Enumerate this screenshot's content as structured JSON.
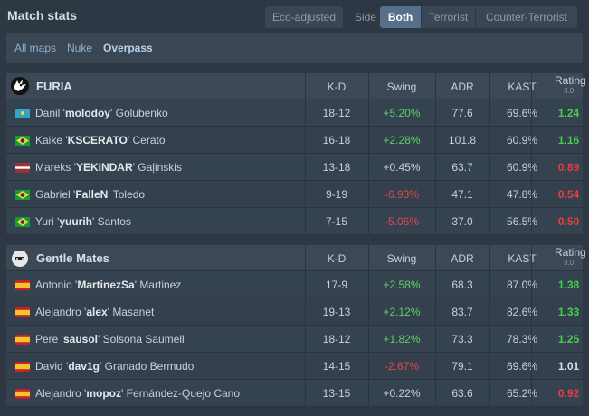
{
  "header": {
    "title": "Match stats",
    "eco_button": "Eco-adjusted",
    "side_label": "Side",
    "side_options": [
      "Both",
      "Terrorist",
      "Counter-Terrorist"
    ]
  },
  "maps": [
    "All maps",
    "Nuke",
    "Overpass"
  ],
  "columns": {
    "kd": "K-D",
    "swing": "Swing",
    "adr": "ADR",
    "kast": "KAST",
    "rating": "Rating",
    "rating_sub": "3.0"
  },
  "teams": [
    {
      "name": "FURIA",
      "players": [
        {
          "first": "Danil '",
          "nick": "molodoy",
          "last": "' Golubenko",
          "flag": "kz",
          "kd": "18-12",
          "swing": "+5.20%",
          "adr": "77.6",
          "kast": "69.6%",
          "rating": "1.24"
        },
        {
          "first": "Kaike '",
          "nick": "KSCERATO",
          "last": "' Cerato",
          "flag": "br",
          "kd": "16-18",
          "swing": "+2.28%",
          "adr": "101.8",
          "kast": "60.9%",
          "rating": "1.16"
        },
        {
          "first": "Mareks '",
          "nick": "YEKINDAR",
          "last": "' Gaļinskis",
          "flag": "lv",
          "kd": "13-18",
          "swing": "+0.45%",
          "adr": "63.7",
          "kast": "60.9%",
          "rating": "0.89"
        },
        {
          "first": "Gabriel '",
          "nick": "FalleN",
          "last": "' Toledo",
          "flag": "br",
          "kd": "9-19",
          "swing": "-6.93%",
          "adr": "47.1",
          "kast": "47.8%",
          "rating": "0.54"
        },
        {
          "first": "Yuri '",
          "nick": "yuurih",
          "last": "' Santos",
          "flag": "br",
          "kd": "7-15",
          "swing": "-5.06%",
          "adr": "37.0",
          "kast": "56.5%",
          "rating": "0.50"
        }
      ]
    },
    {
      "name": "Gentle Mates",
      "players": [
        {
          "first": "Antonio '",
          "nick": "MartinezSa",
          "last": "' Martinez",
          "flag": "es",
          "kd": "17-9",
          "swing": "+2.58%",
          "adr": "68.3",
          "kast": "87.0%",
          "rating": "1.38"
        },
        {
          "first": "Alejandro '",
          "nick": "alex",
          "last": "' Masanet",
          "flag": "es",
          "kd": "19-13",
          "swing": "+2.12%",
          "adr": "83.7",
          "kast": "82.6%",
          "rating": "1.33"
        },
        {
          "first": "Pere '",
          "nick": "sausol",
          "last": "' Solsona Saumell",
          "flag": "es",
          "kd": "18-12",
          "swing": "+1.82%",
          "adr": "73.3",
          "kast": "78.3%",
          "rating": "1.25"
        },
        {
          "first": "David '",
          "nick": "dav1g",
          "last": "' Granado Bermudo",
          "flag": "es",
          "kd": "14-15",
          "swing": "-2.67%",
          "adr": "79.1",
          "kast": "69.6%",
          "rating": "1.01"
        },
        {
          "first": "Alejandro '",
          "nick": "mopoz",
          "last": "' Fernández-Quejo Cano",
          "flag": "es",
          "kd": "13-15",
          "swing": "+0.22%",
          "adr": "63.6",
          "kast": "65.2%",
          "rating": "0.92"
        }
      ]
    }
  ]
}
